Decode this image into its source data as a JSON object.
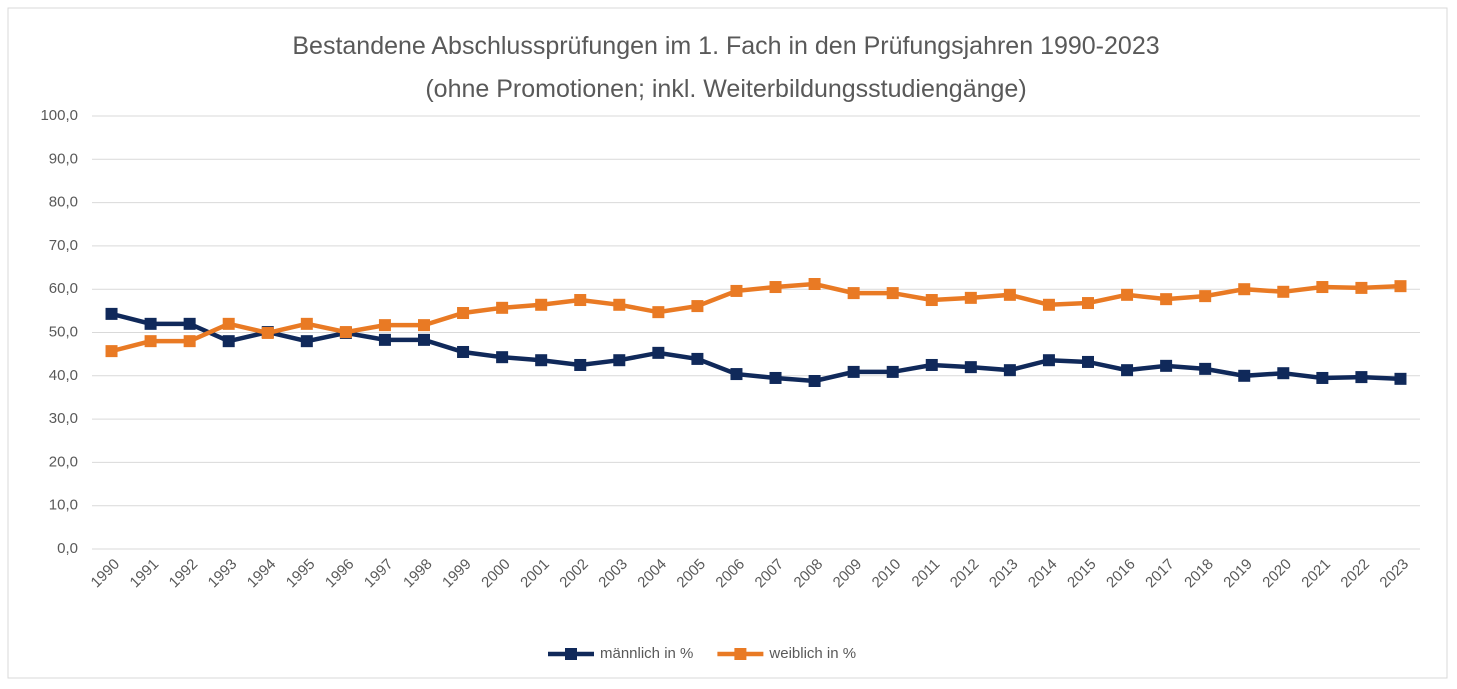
{
  "chart_data": {
    "type": "line",
    "title": "Bestandene Abschlussprüfungen  im 1. Fach in den Prüfungsjahren 1990-2023",
    "subtitle": "(ohne Promotionen; inkl. Weiterbildungsstudiengänge)",
    "categories": [
      "1990",
      "1991",
      "1992",
      "1993",
      "1994",
      "1995",
      "1996",
      "1997",
      "1998",
      "1999",
      "2000",
      "2001",
      "2002",
      "2003",
      "2004",
      "2005",
      "2006",
      "2007",
      "2008",
      "2009",
      "2010",
      "2011",
      "2012",
      "2013",
      "2014",
      "2015",
      "2016",
      "2017",
      "2018",
      "2019",
      "2020",
      "2021",
      "2022",
      "2023"
    ],
    "series": [
      {
        "name": "männlich in %",
        "color": "#10295a",
        "values": [
          54.3,
          52.0,
          52.0,
          48.0,
          50.1,
          48.0,
          49.9,
          48.3,
          48.3,
          45.5,
          44.3,
          43.6,
          42.5,
          43.6,
          45.3,
          43.9,
          40.4,
          39.5,
          38.8,
          40.9,
          40.9,
          42.5,
          42.0,
          41.3,
          43.6,
          43.2,
          41.3,
          42.3,
          41.6,
          40.0,
          40.6,
          39.5,
          39.7,
          39.3
        ]
      },
      {
        "name": "weiblich in %",
        "color": "#e97a24",
        "values": [
          45.7,
          48.0,
          48.0,
          52.0,
          49.9,
          52.0,
          50.1,
          51.7,
          51.7,
          54.5,
          55.7,
          56.4,
          57.5,
          56.4,
          54.7,
          56.1,
          59.6,
          60.5,
          61.2,
          59.1,
          59.1,
          57.5,
          58.0,
          58.7,
          56.4,
          56.8,
          58.7,
          57.7,
          58.4,
          60.0,
          59.4,
          60.5,
          60.3,
          60.7
        ]
      }
    ],
    "ylim": [
      0,
      100
    ],
    "yticks": [
      {
        "value": 0,
        "label": "0,0"
      },
      {
        "value": 10,
        "label": "10,0"
      },
      {
        "value": 20,
        "label": "20,0"
      },
      {
        "value": 30,
        "label": "30,0"
      },
      {
        "value": 40,
        "label": "40,0"
      },
      {
        "value": 50,
        "label": "50,0"
      },
      {
        "value": 60,
        "label": "60,0"
      },
      {
        "value": 70,
        "label": "70,0"
      },
      {
        "value": 80,
        "label": "80,0"
      },
      {
        "value": 90,
        "label": "90,0"
      },
      {
        "value": 100,
        "label": "100,0"
      }
    ],
    "grid": true,
    "legend": "bottom"
  }
}
